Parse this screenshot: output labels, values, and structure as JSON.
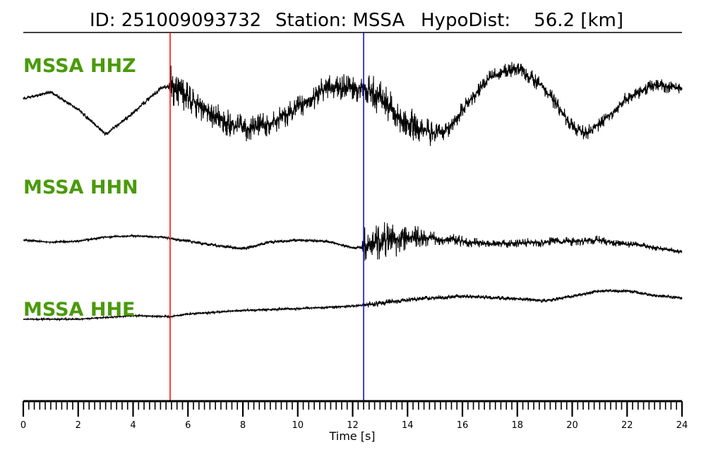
{
  "header": {
    "id_text": "ID: 251009093732",
    "station_text": "Station: MSSA",
    "dist_text": "HypoDist:    56.2 [km]"
  },
  "colors": {
    "label": "#4a9a0a",
    "trace": "#000000",
    "p_pick": "#ff0000",
    "s_pick": "#0000cc"
  },
  "chart_data": {
    "type": "line",
    "title": "ID: 251009093732   Station: MSSA   HypoDist:    56.2 [km]",
    "xlabel": "Time [s]",
    "ylabel": "",
    "xlim": [
      0,
      24
    ],
    "x_ticks": [
      0,
      2,
      4,
      6,
      8,
      10,
      12,
      14,
      16,
      18,
      20,
      22,
      24
    ],
    "minor_tick_step": 0.2,
    "grid": false,
    "legend": "none",
    "picks": [
      {
        "phase": "P",
        "time": 5.35,
        "color": "#ff0000"
      },
      {
        "phase": "S",
        "time": 12.4,
        "color": "#0000cc"
      }
    ],
    "series": [
      {
        "name": "MSSA HHZ",
        "envelope": [
          [
            0,
            0.0
          ],
          [
            1,
            0.2
          ],
          [
            2,
            -0.3
          ],
          [
            3,
            -1.0
          ],
          [
            4,
            -0.4
          ],
          [
            5,
            0.3
          ],
          [
            5.3,
            0.35
          ],
          [
            6,
            0.05
          ],
          [
            7,
            -0.5
          ],
          [
            8,
            -0.85
          ],
          [
            9,
            -0.7
          ],
          [
            10,
            -0.25
          ],
          [
            11,
            0.3
          ],
          [
            12,
            0.35
          ],
          [
            12.4,
            0.3
          ],
          [
            13,
            0.0
          ],
          [
            14,
            -0.7
          ],
          [
            15,
            -1.0
          ],
          [
            15.5,
            -0.8
          ],
          [
            16,
            -0.3
          ],
          [
            17,
            0.6
          ],
          [
            18,
            0.9
          ],
          [
            19,
            0.3
          ],
          [
            20,
            -0.8
          ],
          [
            20.5,
            -1.0
          ],
          [
            21,
            -0.7
          ],
          [
            22,
            0.0
          ],
          [
            23,
            0.4
          ],
          [
            24,
            0.3
          ]
        ],
        "noise": [
          [
            0,
            0.05
          ],
          [
            5.3,
            0.08
          ],
          [
            5.35,
            0.7
          ],
          [
            6,
            0.45
          ],
          [
            10,
            0.35
          ],
          [
            12.4,
            0.45
          ],
          [
            13,
            0.6
          ],
          [
            15,
            0.35
          ],
          [
            16,
            0.25
          ],
          [
            24,
            0.2
          ]
        ]
      },
      {
        "name": "MSSA HHN",
        "envelope": [
          [
            0,
            0.0
          ],
          [
            1,
            -0.1
          ],
          [
            2,
            -0.05
          ],
          [
            3,
            0.15
          ],
          [
            4,
            0.2
          ],
          [
            5,
            0.15
          ],
          [
            6,
            -0.05
          ],
          [
            7,
            -0.25
          ],
          [
            8,
            -0.4
          ],
          [
            9,
            -0.1
          ],
          [
            10,
            0.0
          ],
          [
            11,
            -0.05
          ],
          [
            12,
            -0.35
          ],
          [
            12.4,
            -0.35
          ],
          [
            13,
            0.0
          ],
          [
            14,
            0.1
          ],
          [
            15,
            0.1
          ],
          [
            16,
            -0.05
          ],
          [
            17,
            -0.2
          ],
          [
            18,
            -0.15
          ],
          [
            19,
            -0.1
          ],
          [
            20,
            -0.05
          ],
          [
            21,
            0.0
          ],
          [
            22,
            -0.2
          ],
          [
            23,
            -0.35
          ],
          [
            24,
            -0.55
          ]
        ],
        "noise": [
          [
            0,
            0.05
          ],
          [
            5.3,
            0.06
          ],
          [
            6,
            0.1
          ],
          [
            10,
            0.08
          ],
          [
            12.3,
            0.08
          ],
          [
            12.45,
            1.0
          ],
          [
            13.5,
            0.9
          ],
          [
            15,
            0.35
          ],
          [
            17,
            0.2
          ],
          [
            20,
            0.25
          ],
          [
            24,
            0.12
          ]
        ]
      },
      {
        "name": "MSSA HHE",
        "envelope": [
          [
            0,
            -0.6
          ],
          [
            2,
            -0.6
          ],
          [
            4,
            -0.4
          ],
          [
            5.35,
            -0.45
          ],
          [
            6,
            -0.3
          ],
          [
            8,
            -0.1
          ],
          [
            10,
            0.0
          ],
          [
            12,
            0.15
          ],
          [
            12.4,
            0.2
          ],
          [
            14,
            0.5
          ],
          [
            16,
            0.7
          ],
          [
            18,
            0.55
          ],
          [
            19,
            0.45
          ],
          [
            20,
            0.7
          ],
          [
            21,
            1.0
          ],
          [
            22,
            1.0
          ],
          [
            23,
            0.75
          ],
          [
            24,
            0.6
          ]
        ],
        "noise": [
          [
            0,
            0.05
          ],
          [
            5.3,
            0.06
          ],
          [
            6,
            0.08
          ],
          [
            12.3,
            0.06
          ],
          [
            12.5,
            0.2
          ],
          [
            14,
            0.15
          ],
          [
            24,
            0.1
          ]
        ]
      }
    ]
  }
}
